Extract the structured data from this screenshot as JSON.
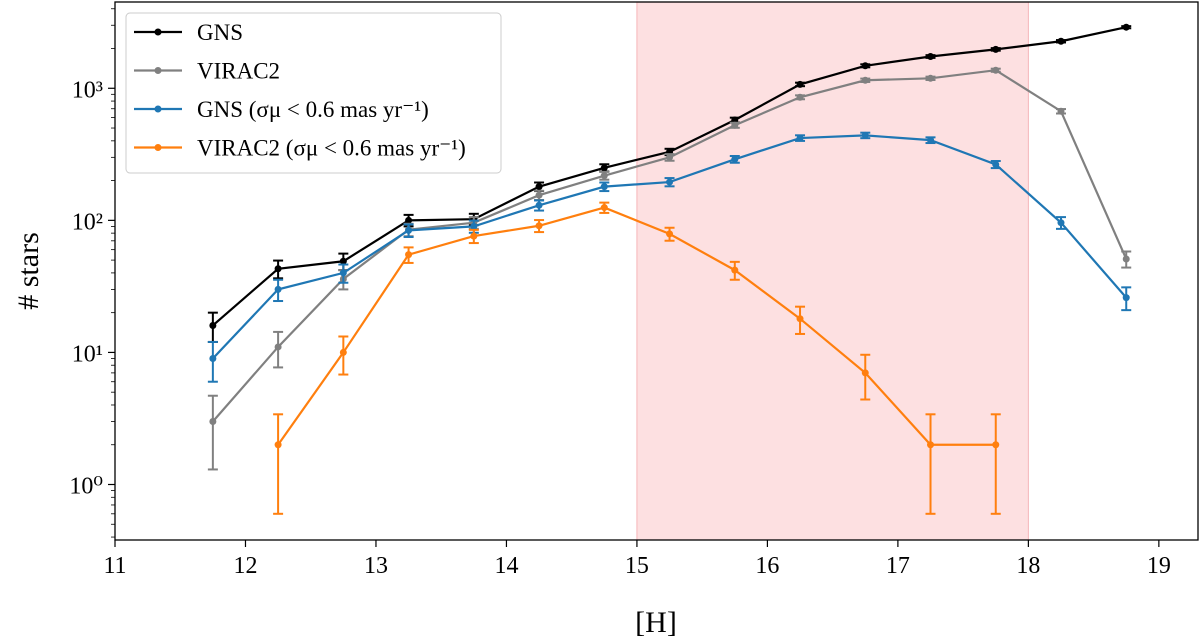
{
  "chart_data": {
    "type": "line",
    "title": "",
    "xlabel": "[H]",
    "ylabel": "# stars",
    "xlim": [
      11,
      19.3
    ],
    "ylim": [
      0.38,
      4500
    ],
    "yscale": "log",
    "xticks": [
      11,
      12,
      13,
      14,
      15,
      16,
      17,
      18,
      19
    ],
    "xtick_labels": [
      "11",
      "12",
      "13",
      "14",
      "15",
      "16",
      "17",
      "18",
      "19"
    ],
    "yticks": [
      1,
      10,
      100,
      1000
    ],
    "ytick_labels": [
      "10⁰",
      "10¹",
      "10²",
      "10³"
    ],
    "grid": false,
    "legend_placement": "top-left",
    "shaded_region": {
      "x": [
        15,
        18
      ],
      "color": "#fde0e1"
    },
    "series": [
      {
        "name": "GNS",
        "color": "#000000",
        "x": [
          11.75,
          12.25,
          12.75,
          13.25,
          13.75,
          14.25,
          14.75,
          15.25,
          15.75,
          16.25,
          16.75,
          17.25,
          17.75,
          18.25,
          18.75
        ],
        "y": [
          16,
          43,
          49,
          100,
          102,
          180,
          250,
          330,
          575,
          1070,
          1480,
          1740,
          1970,
          2270,
          2900
        ],
        "yerr": [
          4,
          6.6,
          7,
          10,
          10.1,
          13.4,
          15.8,
          18.2,
          24,
          32.7,
          38.5,
          41.7,
          44.4,
          47.6,
          53.9
        ]
      },
      {
        "name": "VIRAC2",
        "color": "#808080",
        "x": [
          11.75,
          12.25,
          12.75,
          13.25,
          13.75,
          14.25,
          14.75,
          15.25,
          15.75,
          16.25,
          16.75,
          17.25,
          17.75,
          18.25,
          18.75
        ],
        "y": [
          3,
          11,
          36,
          85,
          96,
          155,
          218,
          300,
          525,
          855,
          1150,
          1190,
          1370,
          670,
          51
        ],
        "yerr": [
          1.7,
          3.3,
          6,
          9.2,
          9.8,
          12.4,
          14.8,
          17.3,
          22.9,
          29.2,
          33.9,
          34.5,
          37,
          25.9,
          7.1
        ]
      },
      {
        "name": "GNS (σμ < 0.6 mas yr⁻¹)",
        "color": "#1f77b4",
        "x": [
          11.75,
          12.25,
          12.75,
          13.25,
          13.75,
          14.25,
          14.75,
          15.25,
          15.75,
          16.25,
          16.75,
          17.25,
          17.75,
          18.25,
          18.75
        ],
        "y": [
          9,
          30,
          40,
          84,
          90,
          130,
          180,
          195,
          290,
          420,
          440,
          405,
          265,
          96,
          26
        ],
        "yerr": [
          3,
          5.5,
          6.3,
          9.2,
          9.5,
          11.4,
          13.4,
          14,
          17,
          20.5,
          21,
          20.1,
          16.3,
          9.8,
          5.1
        ]
      },
      {
        "name": "VIRAC2 (σμ < 0.6 mas yr⁻¹)",
        "color": "#ff7f0e",
        "x": [
          12.25,
          12.75,
          13.25,
          13.75,
          14.25,
          14.75,
          15.25,
          15.75,
          16.25,
          16.75,
          17.25,
          17.75
        ],
        "y": [
          2,
          10,
          55,
          76,
          91,
          125,
          79,
          42,
          18,
          7,
          2,
          2
        ],
        "yerr": [
          1.4,
          3.2,
          7.4,
          8.7,
          9.5,
          11.2,
          8.9,
          6.5,
          4.2,
          2.6,
          1.4,
          1.4
        ]
      }
    ]
  }
}
